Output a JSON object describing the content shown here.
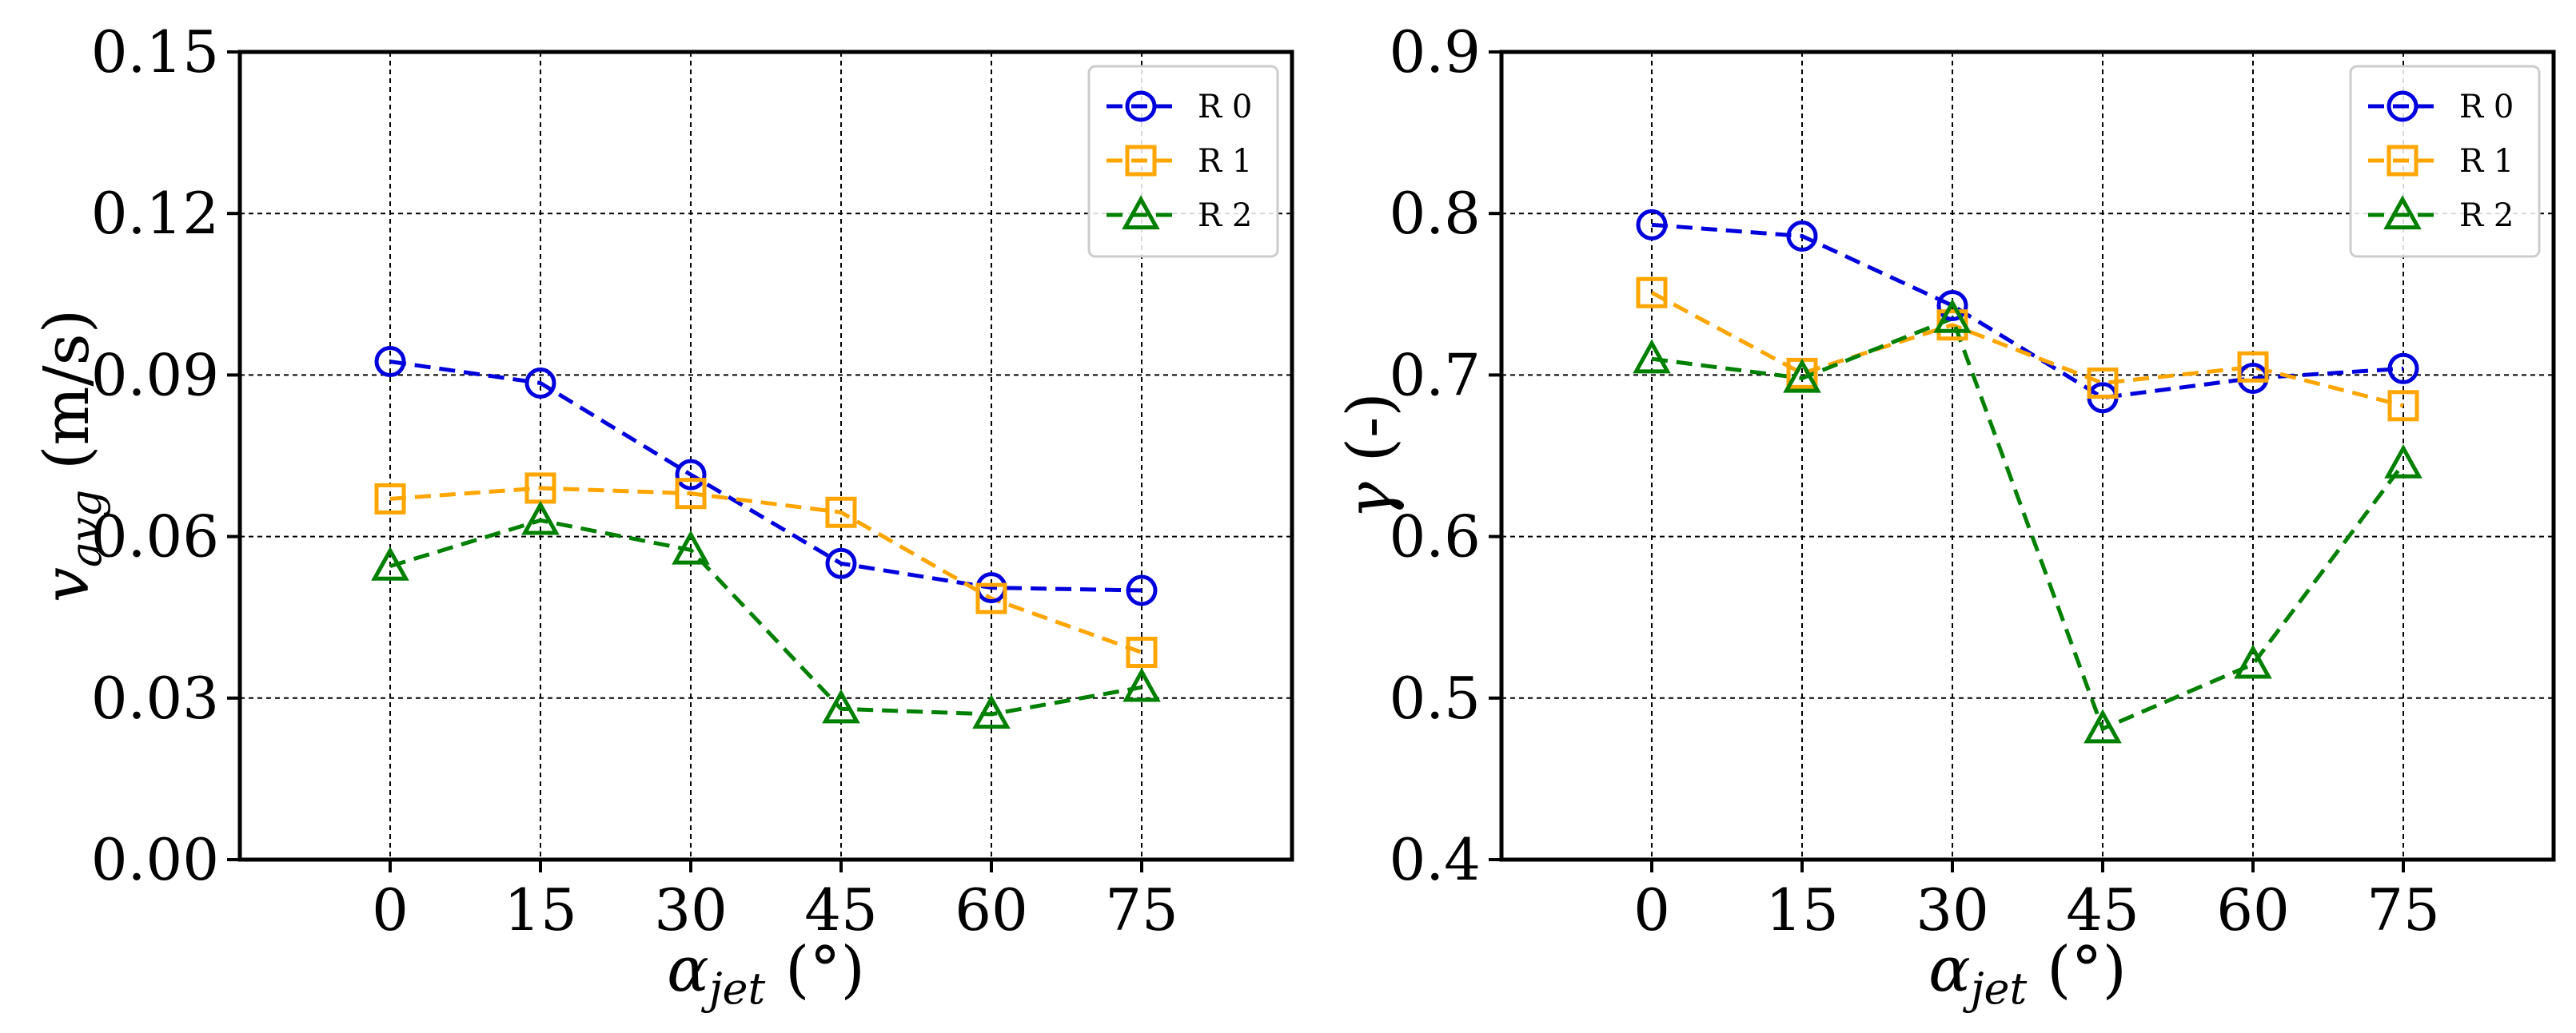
{
  "chart_data": [
    {
      "type": "line",
      "x": [
        0,
        15,
        30,
        45,
        60,
        75
      ],
      "xticks": [
        "0",
        "15",
        "30",
        "45",
        "60",
        "75"
      ],
      "xlim": [
        -15,
        90
      ],
      "xlabel": {
        "symbol": "α",
        "sub": "jet",
        "unit": " (°)"
      },
      "ylabel": {
        "symbol": "v",
        "sub": "avg",
        "unit": " (m/s)"
      },
      "ylim": [
        0,
        0.15
      ],
      "yticks": [
        "0.00",
        "0.03",
        "0.06",
        "0.09",
        "0.12",
        "0.15"
      ],
      "ytick_values": [
        0,
        0.03,
        0.06,
        0.09,
        0.12,
        0.15
      ],
      "grid": true,
      "legend_position": "top-right",
      "series": [
        {
          "name": "R 0",
          "color": "#0000dd",
          "marker": "circle",
          "values": [
            0.0925,
            0.0885,
            0.0715,
            0.055,
            0.0505,
            0.05
          ]
        },
        {
          "name": "R 1",
          "color": "#ffa500",
          "marker": "square",
          "values": [
            0.067,
            0.069,
            0.068,
            0.0645,
            0.0485,
            0.0385
          ]
        },
        {
          "name": "R 2",
          "color": "#008000",
          "marker": "triangle",
          "values": [
            0.0545,
            0.063,
            0.0575,
            0.028,
            0.027,
            0.032
          ]
        }
      ]
    },
    {
      "type": "line",
      "x": [
        0,
        15,
        30,
        45,
        60,
        75
      ],
      "xticks": [
        "0",
        "15",
        "30",
        "45",
        "60",
        "75"
      ],
      "xlim": [
        -15,
        90
      ],
      "xlabel": {
        "symbol": "α",
        "sub": "jet",
        "unit": " (°)"
      },
      "ylabel": {
        "symbol": "γ",
        "sub": "",
        "unit": " (-)"
      },
      "ylim": [
        0.4,
        0.9
      ],
      "yticks": [
        "0.4",
        "0.5",
        "0.6",
        "0.7",
        "0.8",
        "0.9"
      ],
      "ytick_values": [
        0.4,
        0.5,
        0.6,
        0.7,
        0.8,
        0.9
      ],
      "grid": true,
      "legend_position": "top-right",
      "series": [
        {
          "name": "R 0",
          "color": "#0000dd",
          "marker": "circle",
          "values": [
            0.793,
            0.786,
            0.743,
            0.686,
            0.698,
            0.704
          ]
        },
        {
          "name": "R 1",
          "color": "#ffa500",
          "marker": "square",
          "values": [
            0.751,
            0.701,
            0.731,
            0.695,
            0.705,
            0.681
          ]
        },
        {
          "name": "R 2",
          "color": "#008000",
          "marker": "triangle",
          "values": [
            0.71,
            0.698,
            0.735,
            0.481,
            0.521,
            0.645
          ]
        }
      ]
    }
  ]
}
